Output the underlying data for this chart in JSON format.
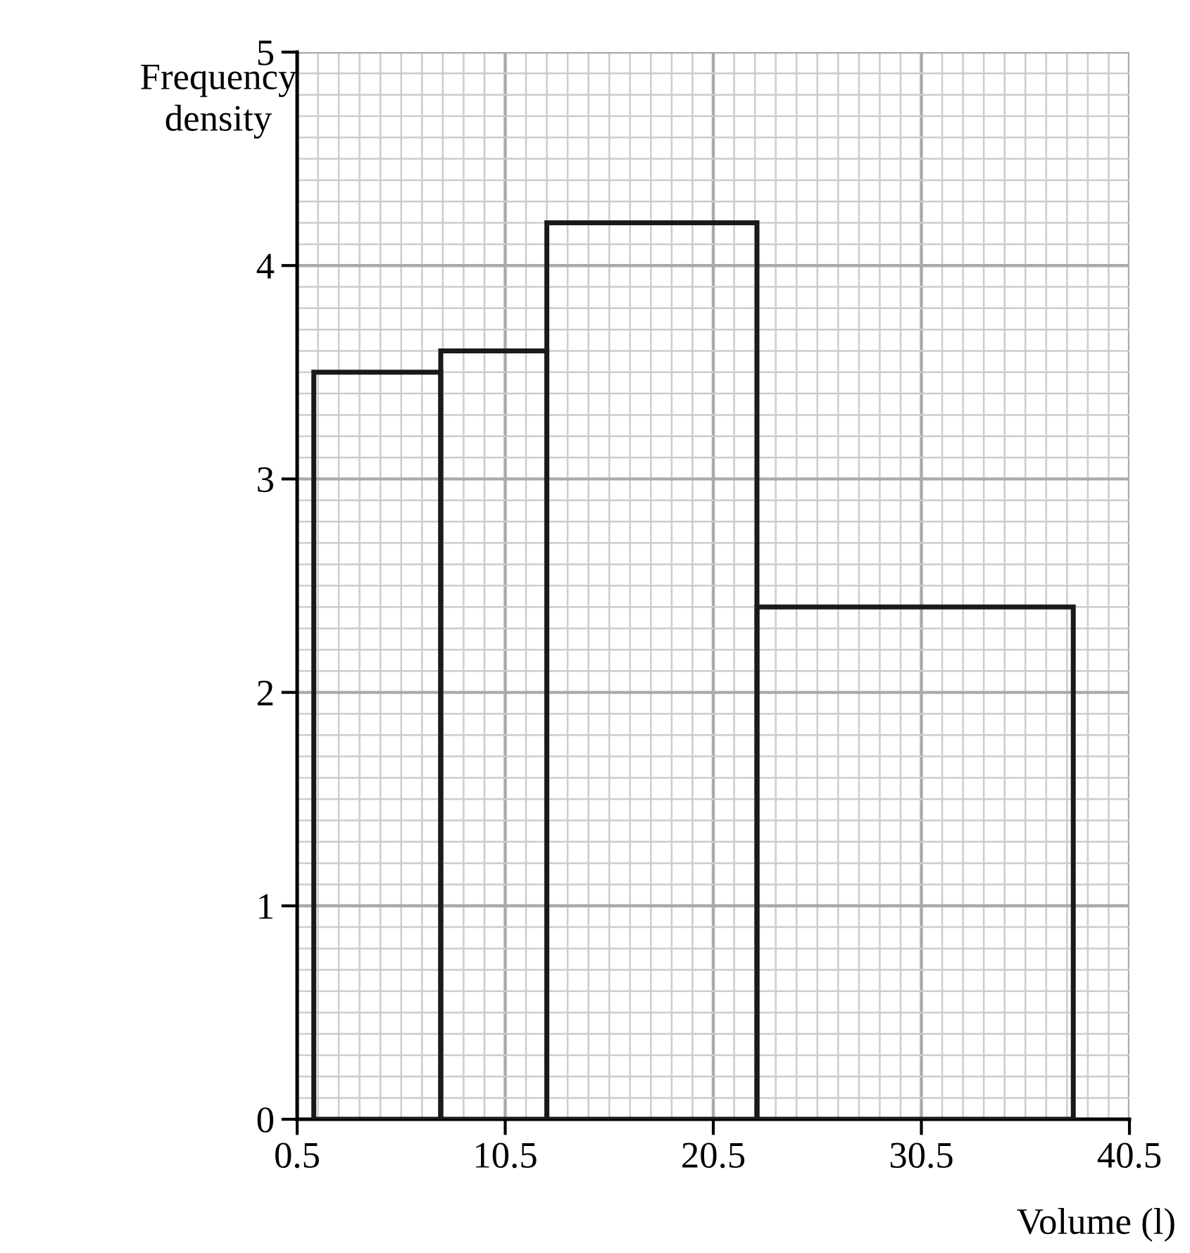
{
  "chart_data": {
    "type": "histogram",
    "xlabel": "Volume (l)",
    "ylabel": "Frequency\ndensity",
    "bins": [
      1.3,
      7.4,
      12.5,
      22.6,
      37.8
    ],
    "values": [
      3.5,
      3.6,
      4.2,
      2.4
    ],
    "color": "#1a1a1a",
    "xlim": [
      0.5,
      40.5
    ],
    "xticks": [
      0.5,
      10.5,
      20.5,
      30.5,
      40.5
    ],
    "ylim": [
      0,
      5
    ],
    "yticks": [
      0,
      1,
      2,
      3,
      4,
      5
    ],
    "grid": true
  }
}
